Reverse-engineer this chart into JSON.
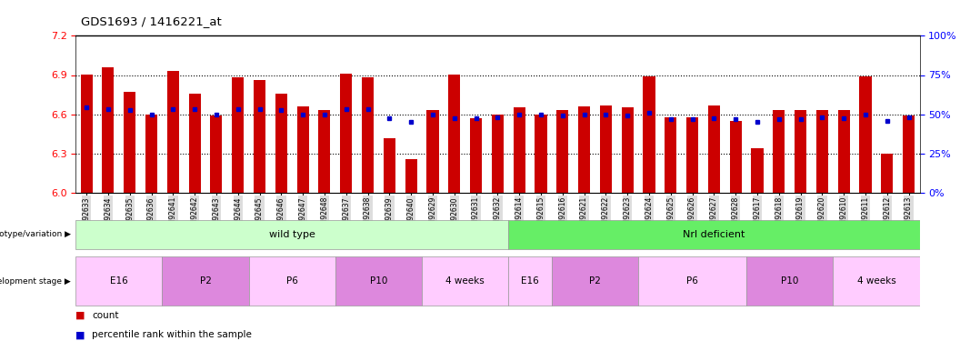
{
  "title": "GDS1693 / 1416221_at",
  "samples": [
    "GSM92633",
    "GSM92634",
    "GSM92635",
    "GSM92636",
    "GSM92641",
    "GSM92642",
    "GSM92643",
    "GSM92644",
    "GSM92645",
    "GSM92646",
    "GSM92647",
    "GSM92648",
    "GSM92637",
    "GSM92638",
    "GSM92639",
    "GSM92640",
    "GSM92629",
    "GSM92630",
    "GSM92631",
    "GSM92632",
    "GSM92614",
    "GSM92615",
    "GSM92616",
    "GSM92621",
    "GSM92622",
    "GSM92623",
    "GSM92624",
    "GSM92625",
    "GSM92626",
    "GSM92627",
    "GSM92628",
    "GSM92617",
    "GSM92618",
    "GSM92619",
    "GSM92620",
    "GSM92610",
    "GSM92611",
    "GSM92612",
    "GSM92613"
  ],
  "bar_values": [
    6.9,
    6.96,
    6.77,
    6.6,
    6.93,
    6.76,
    6.59,
    6.88,
    6.86,
    6.76,
    6.66,
    6.63,
    6.91,
    6.88,
    6.42,
    6.26,
    6.63,
    6.9,
    6.57,
    6.6,
    6.65,
    6.6,
    6.63,
    6.66,
    6.67,
    6.65,
    6.89,
    6.58,
    6.58,
    6.67,
    6.55,
    6.34,
    6.63,
    6.63,
    6.63,
    6.63,
    6.89,
    6.3,
    6.59
  ],
  "percentile_values": [
    6.65,
    6.64,
    6.63,
    6.6,
    6.64,
    6.64,
    6.6,
    6.64,
    6.64,
    6.63,
    6.6,
    6.6,
    6.64,
    6.64,
    6.57,
    6.54,
    6.6,
    6.57,
    6.57,
    6.58,
    6.6,
    6.6,
    6.59,
    6.6,
    6.6,
    6.59,
    6.61,
    6.56,
    6.56,
    6.57,
    6.56,
    6.54,
    6.56,
    6.56,
    6.58,
    6.57,
    6.6,
    6.55,
    6.58
  ],
  "ylim_left": [
    6.0,
    7.2
  ],
  "yticks_left": [
    6.0,
    6.3,
    6.6,
    6.9,
    7.2
  ],
  "ylim_right": [
    0,
    100
  ],
  "yticks_right": [
    0,
    25,
    50,
    75,
    100
  ],
  "bar_color": "#cc0000",
  "percentile_color": "#0000cc",
  "bg_color": "#ffffff",
  "genotype_groups": [
    {
      "label": "wild type",
      "start": 0,
      "end": 19,
      "color": "#ccffcc"
    },
    {
      "label": "Nrl deficient",
      "start": 20,
      "end": 38,
      "color": "#66ee66"
    }
  ],
  "stage_groups": [
    {
      "label": "E16",
      "start": 0,
      "end": 3,
      "color": "#ffccff"
    },
    {
      "label": "P2",
      "start": 4,
      "end": 7,
      "color": "#ee88ee"
    },
    {
      "label": "P6",
      "start": 8,
      "end": 11,
      "color": "#ffccff"
    },
    {
      "label": "P10",
      "start": 12,
      "end": 15,
      "color": "#ee88ee"
    },
    {
      "label": "4 weeks",
      "start": 16,
      "end": 19,
      "color": "#ffccff"
    },
    {
      "label": "E16",
      "start": 20,
      "end": 21,
      "color": "#ffccff"
    },
    {
      "label": "P2",
      "start": 22,
      "end": 25,
      "color": "#ee88ee"
    },
    {
      "label": "P6",
      "start": 26,
      "end": 30,
      "color": "#ffccff"
    },
    {
      "label": "P10",
      "start": 31,
      "end": 34,
      "color": "#ee88ee"
    },
    {
      "label": "4 weeks",
      "start": 35,
      "end": 38,
      "color": "#ffccff"
    }
  ]
}
